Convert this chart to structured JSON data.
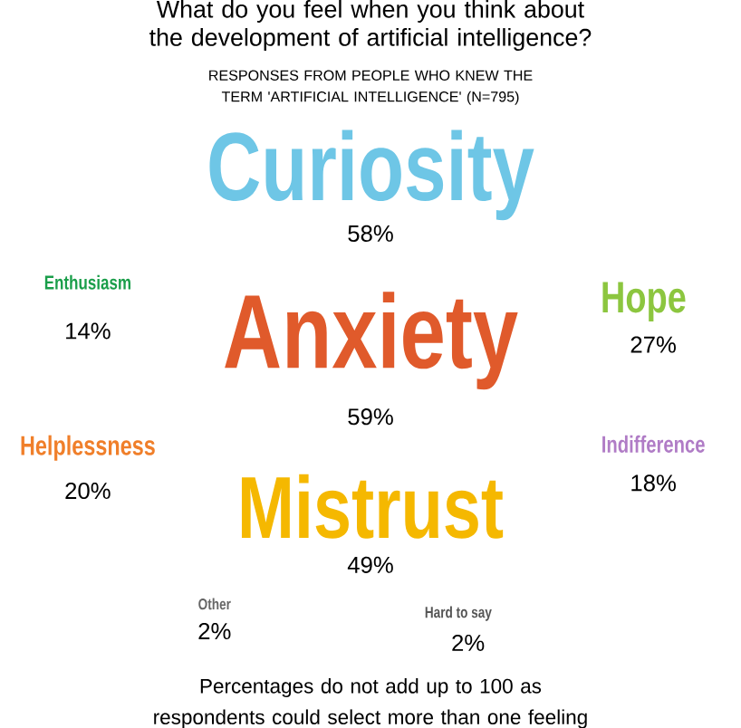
{
  "chart_data": {
    "type": "other",
    "title": "What do you feel when you think about the development of artificial intelligence?",
    "subtitle": "RESPONSES FROM PEOPLE WHO KNEW THE TERM 'ARTIFICIAL INTELLIGENCE' (N=795)",
    "categories": [
      "Curiosity",
      "Enthusiasm",
      "Hope",
      "Anxiety",
      "Helplessness",
      "Indifference",
      "Mistrust",
      "Other",
      "Hard to say"
    ],
    "values": [
      58,
      14,
      27,
      59,
      20,
      18,
      49,
      2,
      2
    ],
    "value_labels": [
      "58%",
      "14%",
      "27%",
      "59%",
      "20%",
      "18%",
      "49%",
      "2%",
      "2%"
    ],
    "colors": [
      "#6ec6e6",
      "#1a9e4a",
      "#8cc63f",
      "#e05a2b",
      "#f07f2a",
      "#b07cc6",
      "#f5b800",
      "#666666",
      "#555555"
    ],
    "annotations": [
      "Percentages do not add up to 100 as respondents could select more than one feeling"
    ]
  }
}
